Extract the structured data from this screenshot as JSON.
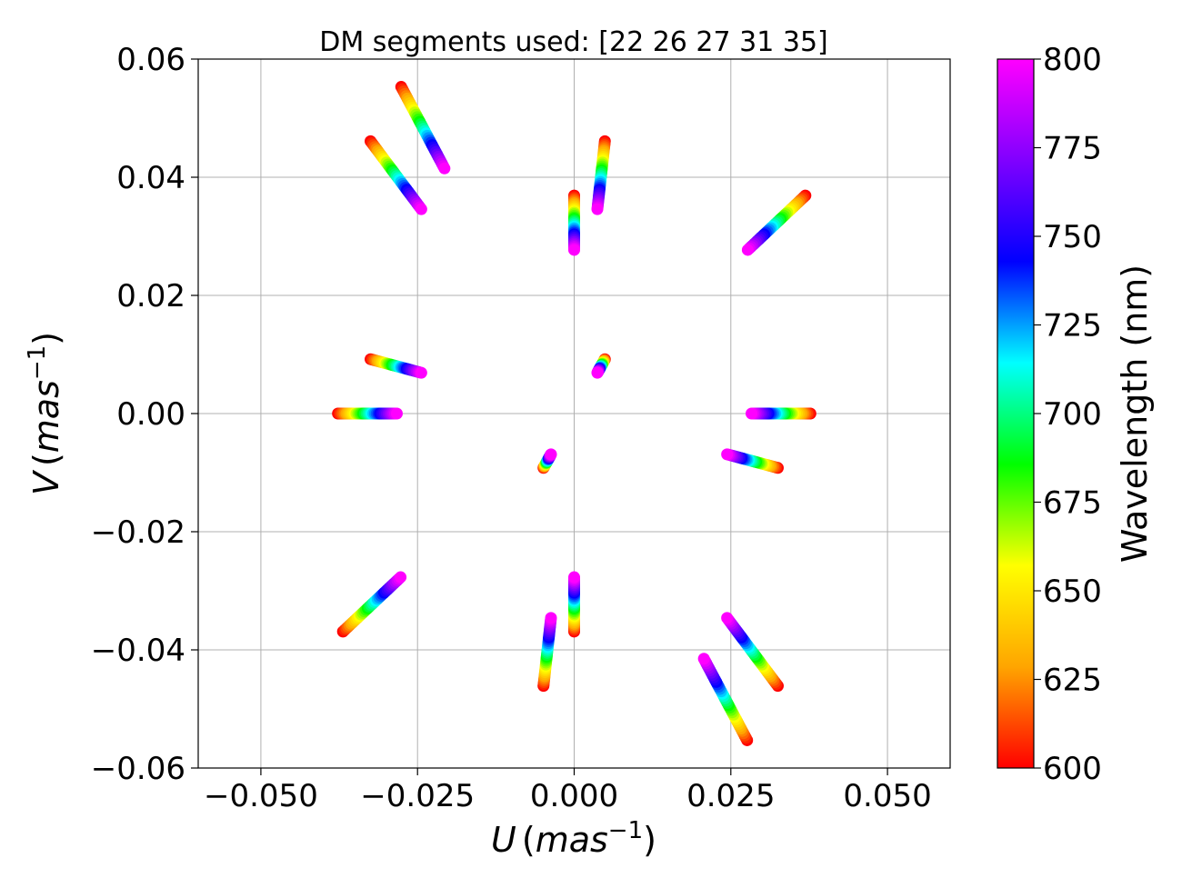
{
  "chart_data": {
    "type": "scatter",
    "title": "DM segments used: [22 26 27 31 35]",
    "xlabel": {
      "var": "U",
      "unit": "mas",
      "exp": "−1"
    },
    "ylabel": {
      "var": "V",
      "unit": "mas",
      "exp": "−1"
    },
    "xlim": [
      -0.06,
      0.06
    ],
    "ylim": [
      -0.06,
      0.06
    ],
    "xticks": [
      -0.05,
      -0.025,
      0.0,
      0.025,
      0.05
    ],
    "xtick_labels": [
      "−0.050",
      "−0.025",
      "0.000",
      "0.025",
      "0.050"
    ],
    "yticks": [
      -0.06,
      -0.04,
      -0.02,
      0.0,
      0.02,
      0.04,
      0.06
    ],
    "ytick_labels": [
      "−0.06",
      "−0.04",
      "−0.02",
      "0.00",
      "0.02",
      "0.04",
      "0.06"
    ],
    "grid": true,
    "colorbar": {
      "label": "Wavelength (nm)",
      "range": [
        600,
        800
      ],
      "ticks": [
        600,
        625,
        650,
        675,
        700,
        725,
        750,
        775,
        800
      ],
      "tick_labels": [
        "600",
        "625",
        "650",
        "675",
        "700",
        "725",
        "750",
        "775",
        "800"
      ],
      "colormap": "gist_rainbow",
      "stops": [
        "#ff0000",
        "#ffa500",
        "#ffff00",
        "#00ff00",
        "#00ffff",
        "#0000ff",
        "#8000ff",
        "#ff00ff"
      ]
    },
    "wavelength_range": [
      600,
      800
    ],
    "baselines": [
      {
        "u600": -0.0369,
        "v600": -0.0369,
        "u800": -0.0277,
        "v800": -0.0277
      },
      {
        "u600": 0.0369,
        "v600": 0.0369,
        "u800": 0.0277,
        "v800": 0.0277
      },
      {
        "u600": -0.0377,
        "v600": 0.0,
        "u800": -0.0283,
        "v800": 0.0
      },
      {
        "u600": 0.0377,
        "v600": 0.0,
        "u800": 0.0283,
        "v800": 0.0
      },
      {
        "u600": -0.0325,
        "v600": 0.0092,
        "u800": -0.0244,
        "v800": 0.0069
      },
      {
        "u600": 0.0325,
        "v600": -0.0092,
        "u800": 0.0244,
        "v800": -0.0069
      },
      {
        "u600": -0.0049,
        "v600": -0.0092,
        "u800": -0.0037,
        "v800": -0.0069
      },
      {
        "u600": 0.0049,
        "v600": 0.0092,
        "u800": 0.0037,
        "v800": 0.0069
      },
      {
        "u600": 0.0,
        "v600": -0.0369,
        "u800": 0.0,
        "v800": -0.0277
      },
      {
        "u600": 0.0,
        "v600": 0.0369,
        "u800": 0.0,
        "v800": 0.0277
      },
      {
        "u600": -0.0049,
        "v600": -0.0461,
        "u800": -0.0037,
        "v800": -0.0346
      },
      {
        "u600": 0.0049,
        "v600": 0.0461,
        "u800": 0.0037,
        "v800": 0.0346
      },
      {
        "u600": 0.0325,
        "v600": -0.0461,
        "u800": 0.0244,
        "v800": -0.0346
      },
      {
        "u600": -0.0325,
        "v600": 0.0461,
        "u800": -0.0244,
        "v800": 0.0346
      },
      {
        "u600": 0.0276,
        "v600": -0.0553,
        "u800": 0.0207,
        "v800": -0.0415
      },
      {
        "u600": -0.0276,
        "v600": 0.0553,
        "u800": -0.0207,
        "v800": 0.0415
      }
    ]
  }
}
